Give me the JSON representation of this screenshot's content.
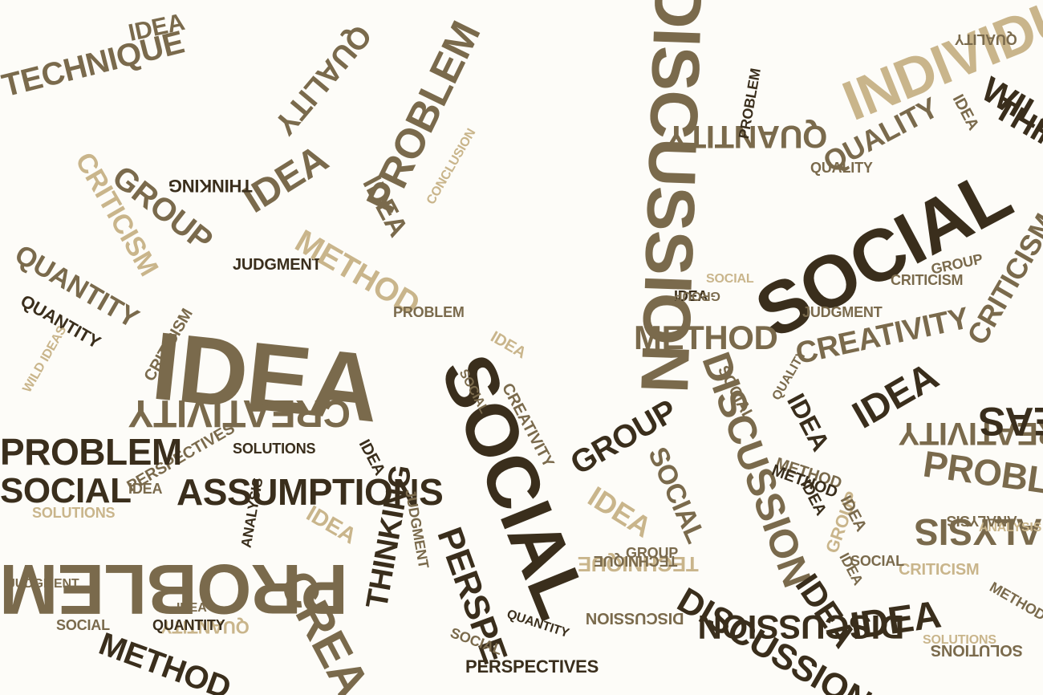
{
  "palette": {
    "dark": "#3a2e1c",
    "mid": "#7a6a4c",
    "light": "#c9b58b",
    "pale": "#dccfae",
    "background": "#fdfcf8"
  },
  "words": [
    {
      "text": "SOCIAL",
      "tone": "dark"
    },
    {
      "text": "SOCIAL",
      "tone": "dark"
    },
    {
      "text": "DISCUSSION",
      "tone": "mid"
    },
    {
      "text": "DISCUSSION",
      "tone": "mid"
    },
    {
      "text": "IDEA",
      "tone": "mid"
    },
    {
      "text": "PROBLEM",
      "tone": "mid"
    },
    {
      "text": "PROBLEM",
      "tone": "mid"
    },
    {
      "text": "ASSUMPTIONS",
      "tone": "dark"
    },
    {
      "text": "CREATIVITY",
      "tone": "mid"
    },
    {
      "text": "CREATIVITY",
      "tone": "mid"
    },
    {
      "text": "METHOD",
      "tone": "mid"
    },
    {
      "text": "GROUP",
      "tone": "dark"
    },
    {
      "text": "GROUP",
      "tone": "mid"
    },
    {
      "text": "IDEA",
      "tone": "mid"
    },
    {
      "text": "IDEA",
      "tone": "dark"
    },
    {
      "text": "IDEA",
      "tone": "dark"
    },
    {
      "text": "THINKING",
      "tone": "dark"
    },
    {
      "text": "QUANTITY",
      "tone": "mid"
    },
    {
      "text": "QUANTITY",
      "tone": "light"
    },
    {
      "text": "QUANTITY",
      "tone": "mid"
    },
    {
      "text": "CRITICISM",
      "tone": "light"
    },
    {
      "text": "CRITICISM",
      "tone": "mid"
    },
    {
      "text": "TECHNIQUE",
      "tone": "mid"
    },
    {
      "text": "PERSPECTIVES",
      "tone": "mid"
    },
    {
      "text": "ANALYSIS",
      "tone": "mid"
    },
    {
      "text": "JUDGMENT",
      "tone": "dark"
    },
    {
      "text": "METHOD",
      "tone": "light"
    },
    {
      "text": "QUALITY",
      "tone": "mid"
    },
    {
      "text": "WILD IDEAS",
      "tone": "dark"
    },
    {
      "text": "PROBLEM",
      "tone": "mid"
    },
    {
      "text": "SOLUTIONS",
      "tone": "dark"
    },
    {
      "text": "PERSPECTIVES",
      "tone": "dark"
    },
    {
      "text": "CREATIVITY",
      "tone": "mid"
    },
    {
      "text": "IDEA",
      "tone": "mid"
    },
    {
      "text": "IDEA",
      "tone": "mid"
    },
    {
      "text": "QUALITY",
      "tone": "mid"
    },
    {
      "text": "GROUP",
      "tone": "mid"
    },
    {
      "text": "METHOD",
      "tone": "mid"
    },
    {
      "text": "TECHNIQUE",
      "tone": "light"
    },
    {
      "text": "DISCUSSION",
      "tone": "dark"
    },
    {
      "text": "SOCIAL",
      "tone": "mid"
    },
    {
      "text": "QUANTITY",
      "tone": "dark"
    },
    {
      "text": "IDEA",
      "tone": "light"
    },
    {
      "text": "THINKING",
      "tone": "dark"
    },
    {
      "text": "SOLUTIONS",
      "tone": "light"
    },
    {
      "text": "CRITICISM",
      "tone": "mid"
    },
    {
      "text": "GROUP",
      "tone": "mid"
    },
    {
      "text": "IDEA",
      "tone": "dark"
    },
    {
      "text": "INDIVIDUAL",
      "tone": "light"
    },
    {
      "text": "JUDGMENT",
      "tone": "mid"
    },
    {
      "text": "PROBLEM",
      "tone": "dark"
    },
    {
      "text": "QUALITY",
      "tone": "mid"
    },
    {
      "text": "CONCLUSION",
      "tone": "light"
    },
    {
      "text": "THINKING",
      "tone": "dark"
    },
    {
      "text": "IDEA",
      "tone": "dark"
    },
    {
      "text": "CREATIVITY",
      "tone": "mid"
    },
    {
      "text": "IDEA",
      "tone": "light"
    },
    {
      "text": "GROUP",
      "tone": "mid"
    },
    {
      "text": "QUALITY",
      "tone": "mid"
    },
    {
      "text": "SOCIAL",
      "tone": "light"
    },
    {
      "text": "IDEA",
      "tone": "mid"
    },
    {
      "text": "CRITICISM",
      "tone": "mid"
    },
    {
      "text": "JUDGMENT",
      "tone": "mid"
    },
    {
      "text": "PROBLEM",
      "tone": "mid"
    },
    {
      "text": "IDEA",
      "tone": "dark"
    },
    {
      "text": "METHOD",
      "tone": "dark"
    },
    {
      "text": "IDEA",
      "tone": "mid"
    },
    {
      "text": "CRITICISM",
      "tone": "light"
    },
    {
      "text": "ANALYSIS",
      "tone": "dark"
    },
    {
      "text": "GROUP",
      "tone": "light"
    },
    {
      "text": "TECHNIQUE",
      "tone": "mid"
    },
    {
      "text": "SOCIAL",
      "tone": "mid"
    },
    {
      "text": "IDEA",
      "tone": "light"
    },
    {
      "text": "IDEA",
      "tone": "mid"
    },
    {
      "text": "DISCUSSION",
      "tone": "mid"
    },
    {
      "text": "SOCIAL",
      "tone": "mid"
    },
    {
      "text": "IDEA",
      "tone": "mid"
    },
    {
      "text": "QUANTITY",
      "tone": "dark"
    },
    {
      "text": "SOLUTIONS",
      "tone": "mid"
    },
    {
      "text": "METHOD",
      "tone": "mid"
    },
    {
      "text": "IDEA",
      "tone": "dark"
    },
    {
      "text": "SOCIAL",
      "tone": "mid"
    },
    {
      "text": "IDEAS",
      "tone": "dark"
    },
    {
      "text": "WILD IDEAS",
      "tone": "light"
    },
    {
      "text": "ANALYSIS",
      "tone": "light"
    },
    {
      "text": "METHOD",
      "tone": "dark"
    },
    {
      "text": "SOLUTIONS",
      "tone": "light"
    },
    {
      "text": "CREA",
      "tone": "mid"
    },
    {
      "text": "PERSPE",
      "tone": "dark"
    },
    {
      "text": "DISCUSSION",
      "tone": "dark"
    },
    {
      "text": "IDEA",
      "tone": "dark"
    },
    {
      "text": "ANALYSIS",
      "tone": "mid"
    },
    {
      "text": "JUDGMENT",
      "tone": "mid"
    },
    {
      "text": "SOCIAL",
      "tone": "mid"
    },
    {
      "text": "SOCIAL",
      "tone": "mid"
    },
    {
      "text": "QUALITY",
      "tone": "mid"
    },
    {
      "text": "QUANTITY",
      "tone": "dark"
    },
    {
      "text": "IDEA",
      "tone": "mid"
    },
    {
      "text": "PROBLEM",
      "tone": "dark"
    },
    {
      "text": "SOCIAL",
      "tone": "dark"
    }
  ]
}
